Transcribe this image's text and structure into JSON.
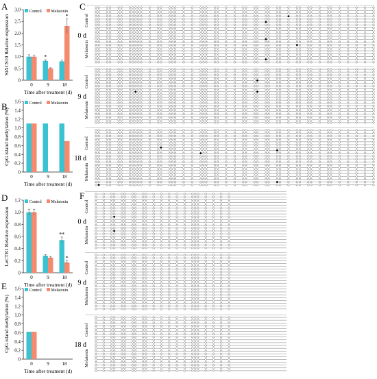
{
  "panel_letters": {
    "A": "A",
    "B": "B",
    "C": "C",
    "D": "D",
    "E": "E",
    "F": "F"
  },
  "colors": {
    "control": "#3cc3d2",
    "melatonin": "#f58a6e",
    "axis": "#222222",
    "line": "#777777",
    "marker_open": "#ffffff",
    "marker_filled": "#000000"
  },
  "chart_data": [
    {
      "panel": "A",
      "type": "bar",
      "ylabel": "SlACS10 Relative expression",
      "xlabel": "Time after treament (d)",
      "categories": [
        "0",
        "9",
        "18"
      ],
      "ylim": [
        0,
        3.0
      ],
      "yticks": [
        "0",
        "0.5",
        "1.0",
        "1.5",
        "2.0",
        "2.5",
        "3.0"
      ],
      "series": [
        {
          "name": "Control",
          "values": [
            1.0,
            0.82,
            0.8
          ],
          "errors": [
            0.08,
            0.05,
            0.05
          ]
        },
        {
          "name": "Melatonin",
          "values": [
            1.0,
            0.5,
            2.3
          ],
          "errors": [
            0.07,
            0.03,
            0.3
          ]
        }
      ],
      "annotations": [
        {
          "category": "9",
          "series": "Control",
          "text": "*"
        },
        {
          "category": "18",
          "series": "Melatonin",
          "text": "*"
        }
      ],
      "legend": [
        "Control",
        "Melatonin"
      ],
      "legend_placement": "top"
    },
    {
      "panel": "B",
      "type": "bar",
      "ylabel": "CpG island methylation (%)",
      "xlabel": "Time after treament (d)",
      "categories": [
        "0",
        "9",
        "18"
      ],
      "ylim": [
        0,
        1.6
      ],
      "yticks": [
        "0",
        "0.2",
        "0.4",
        "0.6",
        "0.8",
        "1.0",
        "1.2",
        "1.4",
        "1.6"
      ],
      "series": [
        {
          "name": "Control",
          "values": [
            1.1,
            1.1,
            1.1
          ]
        },
        {
          "name": "Melatonin",
          "values": [
            1.1,
            0,
            0.7
          ]
        }
      ],
      "legend": [
        "Control",
        "Melatonin"
      ],
      "legend_placement": "top"
    },
    {
      "panel": "D",
      "type": "bar",
      "ylabel": "LeCTR1 Relative expression",
      "xlabel": "Time after treament (d)",
      "categories": [
        "0",
        "9",
        "18"
      ],
      "ylim": [
        0,
        1.2
      ],
      "yticks": [
        "0",
        "0.2",
        "0.4",
        "0.6",
        "0.8",
        "1.0",
        "1.2"
      ],
      "series": [
        {
          "name": "Control",
          "values": [
            1.0,
            0.28,
            0.54
          ],
          "errors": [
            0.05,
            0.02,
            0.05
          ]
        },
        {
          "name": "Melatonin",
          "values": [
            1.0,
            0.25,
            0.17
          ],
          "errors": [
            0.05,
            0.02,
            0.03
          ]
        }
      ],
      "annotations": [
        {
          "category": "18",
          "series": "Control",
          "text": "**"
        },
        {
          "category": "18",
          "series": "Melatonin",
          "text": "*"
        }
      ],
      "legend": [
        "Control",
        "Melatonin"
      ],
      "legend_placement": "top"
    },
    {
      "panel": "E",
      "type": "bar",
      "ylabel": "CpG island methylation (%)",
      "xlabel": "Time after treament (d)",
      "categories": [
        "0",
        "9",
        "18"
      ],
      "ylim": [
        0,
        1.6
      ],
      "yticks": [
        "0",
        "0.2",
        "0.4",
        "0.6",
        "0.8",
        "1.0",
        "1.2",
        "1.4",
        "1.6"
      ],
      "series": [
        {
          "name": "Control",
          "values": [
            0.62,
            0,
            0
          ]
        },
        {
          "name": "Melatonin",
          "values": [
            0.62,
            0,
            0
          ]
        }
      ],
      "legend": [
        "Control",
        "Melatonin"
      ],
      "legend_placement": "top"
    }
  ],
  "methylation_panels": [
    {
      "panel": "C",
      "gene": "SlACS10",
      "num_sites": 47,
      "clusters": [
        [
          0,
          1
        ],
        [
          2,
          3
        ],
        [
          4,
          5
        ],
        [
          6,
          7,
          8,
          9,
          10
        ],
        [
          11
        ],
        [
          12,
          13
        ],
        [
          14,
          15,
          16
        ],
        [
          17
        ],
        [
          18
        ],
        [
          19,
          20,
          21
        ],
        [
          22,
          23
        ],
        [
          24
        ],
        [
          25
        ],
        [
          26,
          27
        ],
        [
          28,
          29
        ],
        [
          30,
          31
        ],
        [
          32,
          33
        ],
        [
          34
        ],
        [
          35,
          36
        ],
        [
          37,
          38
        ],
        [
          39
        ],
        [
          40,
          41
        ],
        [
          42
        ],
        [
          43
        ],
        [
          44
        ],
        [
          45
        ],
        [
          46
        ]
      ],
      "time_points": [
        {
          "label": "0 d",
          "groups": [
            {
              "name": "Control",
              "clones": 10
            },
            {
              "name": "Melatonin",
              "clones": 10
            }
          ],
          "methylated": [
            {
              "group": "Melatonin",
              "clone": 1,
              "site": 30
            },
            {
              "group": "Control",
              "clone": 5,
              "site": 30
            },
            {
              "group": "Control",
              "clone": 3,
              "site": 34
            },
            {
              "group": "Melatonin",
              "clone": 3,
              "site": 35
            },
            {
              "group": "Melatonin",
              "clone": 8,
              "site": 30
            }
          ]
        },
        {
          "label": "9 d",
          "groups": [
            {
              "name": "Control",
              "clones": 10
            },
            {
              "name": "Melatonin",
              "clones": 10
            }
          ],
          "methylated": [
            {
              "group": "Control",
              "clone": 4,
              "site": 29
            },
            {
              "group": "Control",
              "clone": 8,
              "site": 8
            },
            {
              "group": "Control",
              "clone": 8,
              "site": 29
            }
          ]
        },
        {
          "label": "18 d",
          "groups": [
            {
              "name": "Control",
              "clones": 10
            },
            {
              "name": "Melatonin",
              "clones": 10
            }
          ],
          "methylated": [
            {
              "group": "Control",
              "clone": 6,
              "site": 13
            },
            {
              "group": "Control",
              "clone": 8,
              "site": 19
            },
            {
              "group": "Control",
              "clone": 7,
              "site": 32
            },
            {
              "group": "Melatonin",
              "clone": 8,
              "site": 32
            },
            {
              "group": "Melatonin",
              "clone": 9,
              "site": 1
            }
          ]
        }
      ]
    },
    {
      "panel": "F",
      "gene": "LeCTR1",
      "num_sites": 22,
      "clusters": [
        [
          0
        ],
        [
          1
        ],
        [
          2,
          3
        ],
        [
          4,
          5
        ],
        [
          6,
          7
        ],
        [
          8,
          9
        ],
        [
          10
        ],
        [
          11
        ],
        [
          12
        ],
        [
          13
        ],
        [
          14
        ],
        [
          15,
          16,
          17
        ],
        [
          18
        ],
        [
          19
        ],
        [
          20
        ],
        [
          21
        ]
      ],
      "time_points": [
        {
          "label": "0 d",
          "groups": [
            {
              "name": "Control",
              "clones": 10
            },
            {
              "name": "Melatonin",
              "clones": 10
            }
          ],
          "methylated": [
            {
              "group": "Control",
              "clone": 8,
              "site": 3
            },
            {
              "group": "Melatonin",
              "clone": 3,
              "site": 3
            }
          ]
        },
        {
          "label": "9 d",
          "groups": [
            {
              "name": "Control",
              "clones": 10
            },
            {
              "name": "Melatonin",
              "clones": 10
            }
          ],
          "methylated": []
        },
        {
          "label": "18 d",
          "groups": [
            {
              "name": "Control",
              "clones": 10
            },
            {
              "name": "Melatonin",
              "clones": 10
            }
          ],
          "methylated": []
        }
      ]
    }
  ]
}
